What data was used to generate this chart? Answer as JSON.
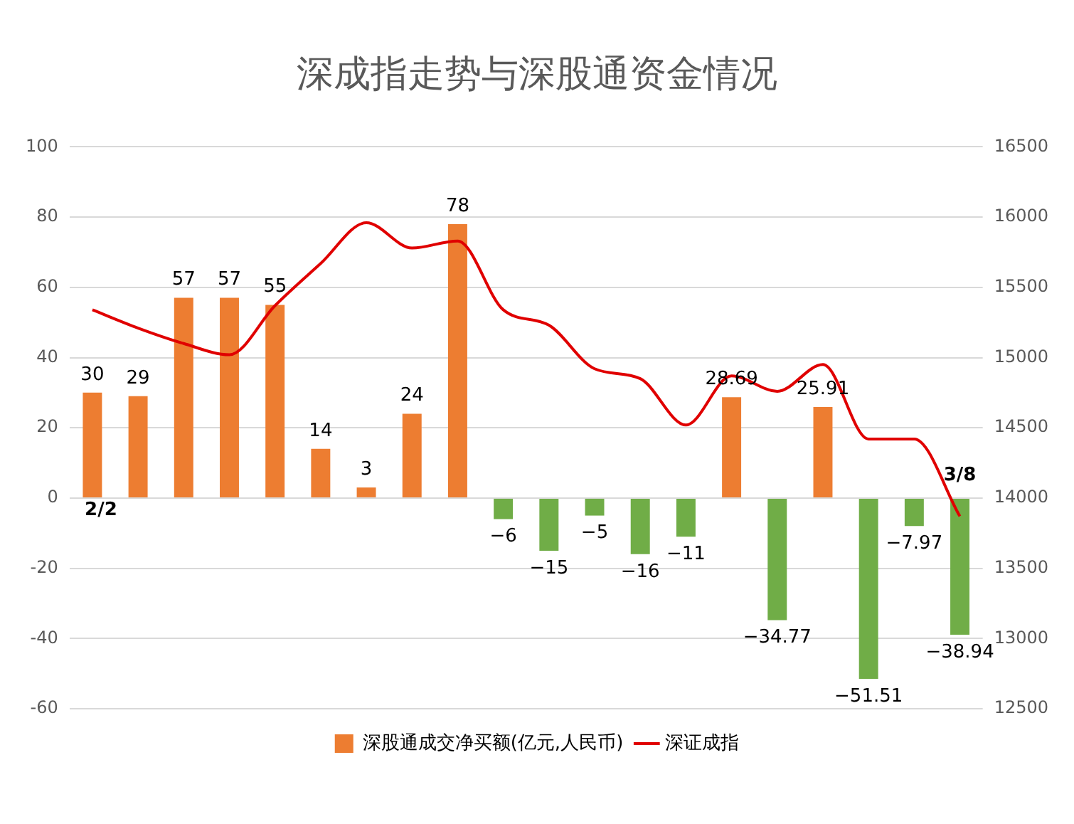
{
  "chart_data": {
    "type": "bar",
    "title": "深成指走势与深股通资金情况",
    "categories": [
      null,
      null,
      null,
      null,
      null,
      null,
      null,
      null,
      null,
      null,
      null,
      null,
      null,
      null,
      null,
      null,
      null,
      null,
      null,
      null
    ],
    "series": [
      {
        "name": "深股通成交净买额(亿元,人民币)",
        "colors": [
          "#ed7d31",
          "#ed7d31",
          "#ed7d31",
          "#ed7d31",
          "#ed7d31",
          "#ed7d31",
          "#ed7d31",
          "#ed7d31",
          "#ed7d31",
          "#70ad47",
          "#70ad47",
          "#70ad47",
          "#70ad47",
          "#70ad47",
          "#ed7d31",
          "#70ad47",
          "#ed7d31",
          "#70ad47",
          "#70ad47",
          "#70ad47"
        ],
        "values": [
          30,
          29,
          57,
          57,
          55,
          14,
          3,
          24,
          78,
          -6,
          -15,
          -5,
          -16,
          -11,
          28.69,
          -34.77,
          25.91,
          -51.51,
          -7.97,
          -38.94
        ],
        "value_labels": [
          "30",
          "29",
          "57",
          "57",
          "55",
          "14",
          "3",
          "24",
          "78",
          "−6",
          "−15",
          "−5",
          "−16",
          "−11",
          "28.69",
          "−34.77",
          "25.91",
          "−51.51",
          "−7.97",
          "−38.94"
        ]
      },
      {
        "name": "深证成指",
        "type": "line",
        "axis": "y2",
        "color": "#e00000",
        "values": [
          15340,
          15210,
          15100,
          15020,
          15370,
          15670,
          15960,
          15780,
          15830,
          15340,
          15230,
          14920,
          14850,
          14520,
          14870,
          14760,
          14950,
          14420,
          14420,
          13870
        ]
      }
    ],
    "ylim": [
      -60,
      100
    ],
    "yticks": [
      -60,
      -40,
      -20,
      0,
      20,
      40,
      60,
      80,
      100
    ],
    "y2lim": [
      12500,
      16500
    ],
    "y2ticks": [
      12500,
      13000,
      13500,
      14000,
      14500,
      15000,
      15500,
      16000,
      16500
    ],
    "grid": "y",
    "legend": "bottom",
    "marker": "none",
    "annotations": [
      "2/2",
      "3/8"
    ]
  }
}
